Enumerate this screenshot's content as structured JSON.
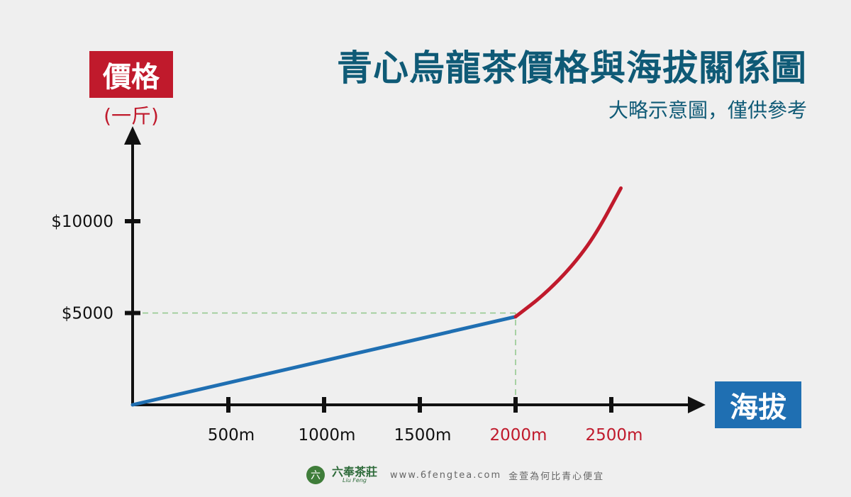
{
  "header": {
    "title": "青心烏龍茶價格與海拔關係圖",
    "subtitle": "大略示意圖，僅供參考"
  },
  "axes": {
    "y_label": "價格",
    "y_unit": "(一斤)",
    "x_label": "海拔"
  },
  "footer": {
    "brand": "六奉茶莊",
    "brand_en": "Liu Feng",
    "website": "www.6fengtea.com",
    "slogan": "金萱為何比青心便宜",
    "logo_glyph": "六"
  },
  "colors": {
    "title": "#0f5a76",
    "y_label_bg": "#c01a2c",
    "x_label_bg": "#1f6fb2",
    "line_low": "#1f6fb2",
    "line_high": "#c01a2c",
    "guide": "#8fc78a",
    "axis": "#111111"
  },
  "chart_data": {
    "type": "line",
    "title": "青心烏龍茶價格與海拔關係圖",
    "xlabel": "海拔",
    "ylabel": "價格",
    "x_ticks": [
      {
        "value": 500,
        "label": "500m",
        "highlight": false
      },
      {
        "value": 1000,
        "label": "1000m",
        "highlight": false
      },
      {
        "value": 1500,
        "label": "1500m",
        "highlight": false
      },
      {
        "value": 2000,
        "label": "2000m",
        "highlight": true
      },
      {
        "value": 2500,
        "label": "2500m",
        "highlight": true
      }
    ],
    "y_ticks": [
      {
        "value": 5000,
        "label": "$5000"
      },
      {
        "value": 10000,
        "label": "$10000"
      }
    ],
    "xlim": [
      0,
      3000
    ],
    "ylim": [
      0,
      15000
    ],
    "series": [
      {
        "color": "#1f6fb2",
        "points": [
          [
            0,
            0
          ],
          [
            2000,
            4800
          ]
        ]
      },
      {
        "color": "#c01a2c",
        "points": [
          [
            2000,
            4800
          ],
          [
            2150,
            6000
          ],
          [
            2300,
            7600
          ],
          [
            2420,
            9300
          ],
          [
            2550,
            11800
          ]
        ]
      }
    ],
    "guides": [
      {
        "from": [
          0,
          5000
        ],
        "to": [
          2000,
          5000
        ]
      },
      {
        "from": [
          2000,
          0
        ],
        "to": [
          2000,
          5000
        ]
      }
    ],
    "grid": false
  }
}
